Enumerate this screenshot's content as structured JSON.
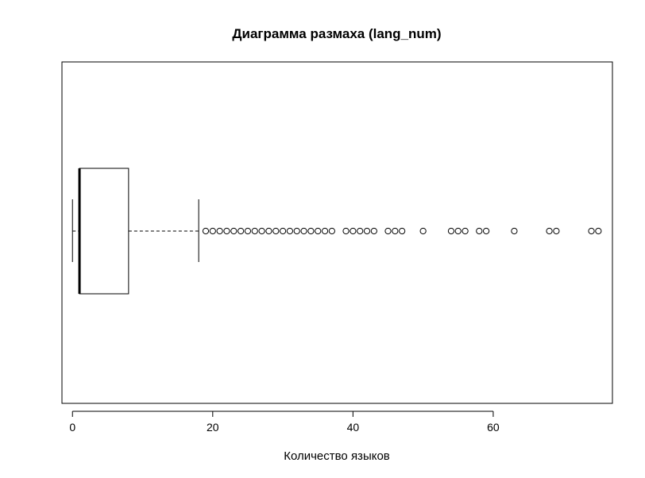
{
  "chart_data": {
    "type": "boxplot",
    "orientation": "horizontal",
    "title": "Диаграмма размаха (lang_num)",
    "xlabel": "Количество языков",
    "ylabel": "",
    "xlim": [
      -1.5,
      77
    ],
    "x_ticks": [
      0,
      20,
      40,
      60
    ],
    "tick_labels": [
      "0",
      "20",
      "40",
      "60"
    ],
    "grid": false,
    "box": {
      "min": 0,
      "q1": 1,
      "median": 1,
      "q3": 8,
      "whisker_high": 18
    },
    "outliers": [
      19,
      20,
      21,
      22,
      23,
      24,
      25,
      26,
      27,
      28,
      29,
      30,
      31,
      32,
      33,
      34,
      35,
      36,
      37,
      39,
      40,
      41,
      42,
      43,
      45,
      46,
      47,
      50,
      54,
      55,
      56,
      58,
      59,
      63,
      68,
      69,
      74,
      75
    ]
  }
}
